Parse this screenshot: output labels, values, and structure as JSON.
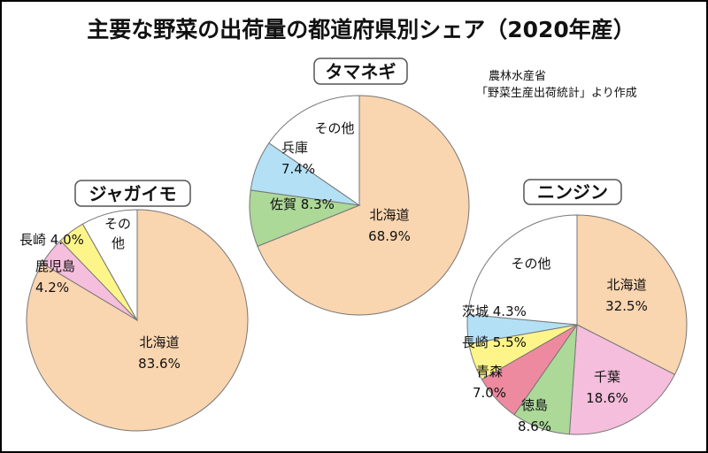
{
  "title": "主要な野菜の出荷量の都道府県別シェア（2020年産）",
  "source": [
    "農林水産省",
    "「野菜生産出荷統計」より作成"
  ],
  "chart_data": [
    {
      "type": "pie",
      "title": "タマネギ",
      "slices": [
        {
          "label": "北海道",
          "value": 68.9,
          "text": "68.9%",
          "color": "#f9d5b0"
        },
        {
          "label": "佐賀",
          "value": 8.3,
          "text": "8.3%",
          "color": "#acd898"
        },
        {
          "label": "兵庫",
          "value": 7.4,
          "text": "7.4%",
          "color": "#b3e0f5"
        },
        {
          "label": "その他",
          "value": 15.4,
          "text": "",
          "color": "#ffffff"
        }
      ]
    },
    {
      "type": "pie",
      "title": "ジャガイモ",
      "slices": [
        {
          "label": "北海道",
          "value": 83.6,
          "text": "83.6%",
          "color": "#f9d5b0"
        },
        {
          "label": "鹿児島",
          "value": 4.2,
          "text": "4.2%",
          "color": "#f5bedc"
        },
        {
          "label": "長崎",
          "value": 4.0,
          "text": "4.0%",
          "color": "#fdf58a"
        },
        {
          "label": "その他",
          "value": 8.2,
          "text": "",
          "color": "#ffffff"
        }
      ]
    },
    {
      "type": "pie",
      "title": "ニンジン",
      "slices": [
        {
          "label": "北海道",
          "value": 32.5,
          "text": "32.5%",
          "color": "#f9d5b0"
        },
        {
          "label": "千葉",
          "value": 18.6,
          "text": "18.6%",
          "color": "#f5bedc"
        },
        {
          "label": "徳島",
          "value": 8.6,
          "text": "8.6%",
          "color": "#acd898"
        },
        {
          "label": "青森",
          "value": 7.0,
          "text": "7.0%",
          "color": "#ee8aa0"
        },
        {
          "label": "長崎",
          "value": 5.5,
          "text": "5.5%",
          "color": "#fdf58a"
        },
        {
          "label": "茨城",
          "value": 4.3,
          "text": "4.3%",
          "color": "#b3e0f5"
        },
        {
          "label": "その他",
          "value": 23.5,
          "text": "",
          "color": "#ffffff"
        }
      ]
    }
  ]
}
